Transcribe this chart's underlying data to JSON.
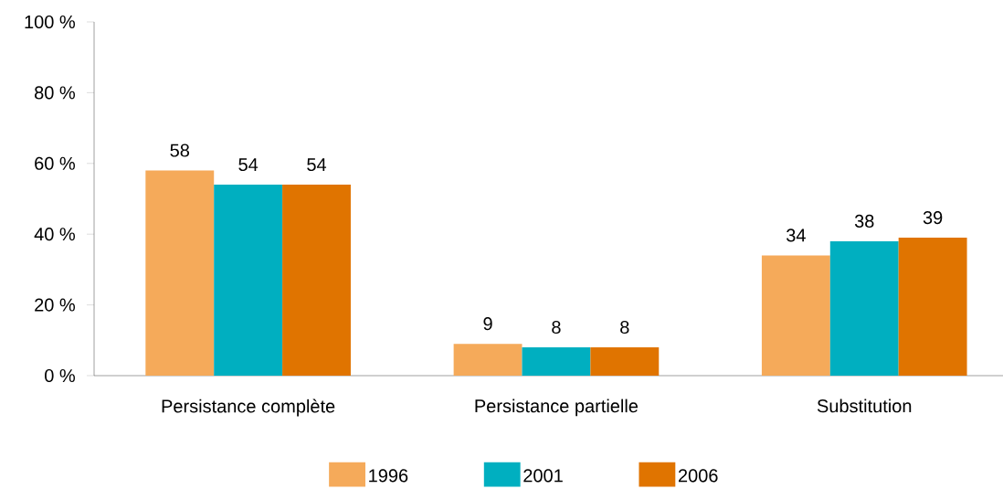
{
  "chart_data": {
    "type": "bar",
    "categories": [
      "Persistance complète",
      "Persistance partielle",
      "Substitution"
    ],
    "series": [
      {
        "name": "1996",
        "color": "#f5aa5a",
        "values": [
          58,
          9,
          34
        ]
      },
      {
        "name": "2001",
        "color": "#00afc0",
        "values": [
          54,
          8,
          38
        ]
      },
      {
        "name": "2006",
        "color": "#e07400",
        "values": [
          54,
          8,
          39
        ]
      }
    ],
    "ylim": [
      0,
      100
    ],
    "yticks": [
      {
        "value": 0,
        "label": "0 %"
      },
      {
        "value": 20,
        "label": "20 %"
      },
      {
        "value": 40,
        "label": "40 %"
      },
      {
        "value": 60,
        "label": "60 %"
      },
      {
        "value": 80,
        "label": "80 %"
      },
      {
        "value": 100,
        "label": "100 %"
      }
    ],
    "data_labels": true,
    "legend": "bottom"
  }
}
